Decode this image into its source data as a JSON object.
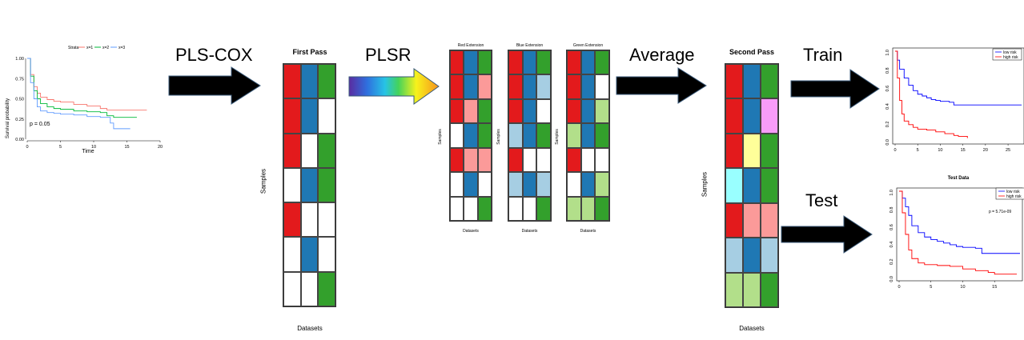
{
  "colors": {
    "R": "#e31a1c",
    "B": "#1f78b4",
    "G": "#33a02c",
    "W": "#ffffff",
    "r": "#fb9a99",
    "b": "#a6cee3",
    "g": "#b2df8a",
    "y": "#ffff99",
    "c": "#99ffff",
    "m": "#f89cf8",
    "arrow": "#000000",
    "low_risk": "#0000ff",
    "high_risk": "#ff0000",
    "strata1": "#f8766d",
    "strata2": "#00ba38",
    "strata3": "#619cff"
  },
  "steps": {
    "pls_cox": "PLS-COX",
    "plsr": "PLSR",
    "average": "Average",
    "train": "Train",
    "test": "Test"
  },
  "first_pass": {
    "title": "First Pass",
    "ylabel": "Samples",
    "xlabel": "Datasets",
    "rows": [
      "RBG",
      "RBW",
      "RWG",
      "WBG",
      "RWW",
      "WBW",
      "WWG"
    ]
  },
  "extensions": [
    {
      "title": "Red Extension",
      "ylabel": "Samples",
      "xlabel": "Datasets",
      "rows": [
        "RBG",
        "RBr",
        "RrG",
        "WBG",
        "Rrr",
        "WBW",
        "WWG"
      ]
    },
    {
      "title": "Blue Extension",
      "ylabel": "Samples",
      "xlabel": "Datasets",
      "rows": [
        "RBG",
        "RBb",
        "RBW",
        "bBG",
        "RWW",
        "bBb",
        "WWG"
      ]
    },
    {
      "title": "Green Extension",
      "ylabel": "Samples",
      "xlabel": "Datasets",
      "rows": [
        "RBG",
        "RBW",
        "RBg",
        "gBG",
        "RWW",
        "WBg",
        "ggG"
      ]
    }
  ],
  "second_pass": {
    "title": "Second Pass",
    "ylabel": "Samples",
    "xlabel": "Datasets",
    "rows": [
      "RBG",
      "RBm",
      "RyG",
      "cBG",
      "Rrr",
      "bBb",
      "ggG"
    ]
  },
  "chart_data": [
    {
      "type": "line",
      "subtype": "kaplan-meier",
      "legend_title": "Strata",
      "xlabel": "Time",
      "ylabel": "Survival probability",
      "annotation": "p = 0.05",
      "xlim": [
        0,
        20
      ],
      "ylim": [
        0,
        1
      ],
      "xticks": [
        "0",
        "5",
        "10",
        "15",
        "20"
      ],
      "yticks": [
        "0.00",
        "0.25",
        "0.50",
        "0.75",
        "1.00"
      ],
      "legend_placement": "top",
      "series": [
        {
          "name": "x=1",
          "color": "#f8766d",
          "x": [
            0,
            0.5,
            1,
            1.5,
            2,
            3,
            4,
            5,
            7,
            9,
            11,
            12,
            14,
            18
          ],
          "y": [
            1,
            0.8,
            0.65,
            0.57,
            0.52,
            0.49,
            0.47,
            0.46,
            0.43,
            0.41,
            0.38,
            0.36,
            0.36,
            0.36
          ]
        },
        {
          "name": "x=2",
          "color": "#00ba38",
          "x": [
            0,
            0.5,
            1,
            1.5,
            2,
            3,
            4,
            5,
            7,
            9,
            11,
            12,
            13,
            16.5
          ],
          "y": [
            1,
            0.78,
            0.6,
            0.5,
            0.44,
            0.4,
            0.38,
            0.37,
            0.35,
            0.34,
            0.33,
            0.29,
            0.27,
            0.27
          ]
        },
        {
          "name": "x=3",
          "color": "#619cff",
          "x": [
            0,
            0.5,
            1,
            1.5,
            2,
            3,
            4,
            5,
            7,
            9,
            11,
            12.5,
            13,
            15.5
          ],
          "y": [
            1,
            0.7,
            0.5,
            0.4,
            0.35,
            0.33,
            0.32,
            0.31,
            0.3,
            0.28,
            0.27,
            0.2,
            0.13,
            0.13
          ]
        }
      ]
    },
    {
      "type": "line",
      "subtype": "kaplan-meier",
      "title": "",
      "xlim": [
        0,
        28
      ],
      "ylim": [
        0,
        1
      ],
      "xticks": [
        "0",
        "5",
        "10",
        "15",
        "20",
        "25"
      ],
      "yticks": [
        "0.0",
        "0.2",
        "0.4",
        "0.6",
        "0.8",
        "1.0"
      ],
      "legend_placement": "top-right",
      "series": [
        {
          "name": "low risk",
          "color": "#0000ff",
          "x": [
            0,
            0.5,
            1,
            2,
            3,
            4,
            5,
            6,
            7,
            8,
            9,
            10,
            12,
            13,
            28
          ],
          "y": [
            1,
            0.9,
            0.8,
            0.7,
            0.62,
            0.56,
            0.52,
            0.5,
            0.48,
            0.46,
            0.45,
            0.44,
            0.43,
            0.4,
            0.4
          ]
        },
        {
          "name": "high risk",
          "color": "#ff0000",
          "x": [
            0,
            0.5,
            1,
            1.5,
            2,
            3,
            4,
            5,
            7,
            9,
            11,
            13,
            14,
            16
          ],
          "y": [
            1,
            0.7,
            0.45,
            0.3,
            0.22,
            0.18,
            0.15,
            0.13,
            0.12,
            0.1,
            0.08,
            0.06,
            0.05,
            0.03
          ]
        }
      ]
    },
    {
      "type": "line",
      "subtype": "kaplan-meier",
      "title": "Test Data",
      "annotation": "p = 5.71e-09",
      "xlim": [
        0,
        19
      ],
      "ylim": [
        0,
        1
      ],
      "xticks": [
        "0",
        "5",
        "10",
        "15"
      ],
      "yticks": [
        "0.0",
        "0.2",
        "0.4",
        "0.6",
        "0.8",
        "1.0"
      ],
      "legend_placement": "top-right",
      "series": [
        {
          "name": "low risk",
          "color": "#0000ff",
          "x": [
            0,
            0.5,
            1,
            1.5,
            2,
            3,
            4,
            5,
            6,
            7,
            8,
            9,
            10,
            12,
            13,
            19
          ],
          "y": [
            1,
            0.92,
            0.82,
            0.72,
            0.6,
            0.52,
            0.47,
            0.44,
            0.42,
            0.4,
            0.38,
            0.36,
            0.35,
            0.34,
            0.28,
            0.28
          ]
        },
        {
          "name": "high risk",
          "color": "#ff0000",
          "x": [
            0,
            0.5,
            1,
            1.5,
            2,
            3,
            4,
            6,
            8,
            10,
            12,
            14,
            15,
            18.5
          ],
          "y": [
            1,
            0.75,
            0.5,
            0.32,
            0.22,
            0.17,
            0.15,
            0.14,
            0.13,
            0.1,
            0.08,
            0.06,
            0.04,
            0.04
          ]
        }
      ]
    }
  ]
}
